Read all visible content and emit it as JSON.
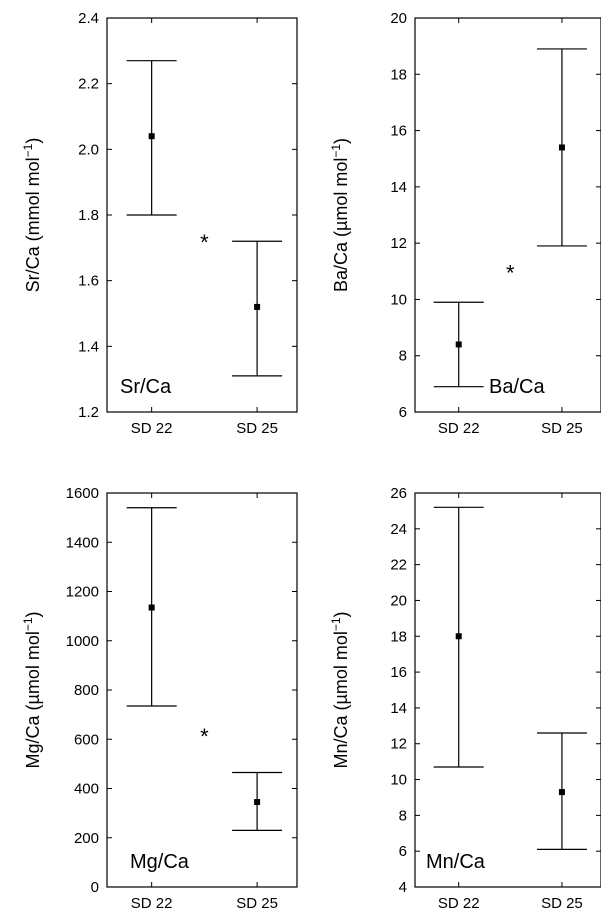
{
  "chart_data": [
    {
      "type": "errorbar",
      "panel_label": "Sr/Ca",
      "ylabel_main": "Sr/Ca (mmol mol",
      "ylabel_sup": "−1",
      "ylabel_close": ")",
      "categories": [
        "SD 22",
        "SD 25"
      ],
      "series": [
        {
          "mean": [
            2.04,
            1.52
          ],
          "lower": [
            1.8,
            1.31
          ],
          "upper": [
            2.27,
            1.72
          ]
        }
      ],
      "ylim": [
        1.2,
        2.4
      ],
      "yticks": [
        1.2,
        1.4,
        1.6,
        1.8,
        2.0,
        2.2,
        2.4
      ],
      "ytick_labels": [
        "1.2",
        "1.4",
        "1.6",
        "1.8",
        "2.0",
        "2.2",
        "2.4"
      ],
      "annotation": "*",
      "annotation_y": 1.73
    },
    {
      "type": "errorbar",
      "panel_label": "Ba/Ca",
      "ylabel_main": "Ba/Ca (µmol mol",
      "ylabel_sup": "−1",
      "ylabel_close": ")",
      "categories": [
        "SD 22",
        "SD 25"
      ],
      "series": [
        {
          "mean": [
            8.4,
            15.4
          ],
          "lower": [
            6.9,
            11.9
          ],
          "upper": [
            9.9,
            18.9
          ]
        }
      ],
      "ylim": [
        6,
        20
      ],
      "yticks": [
        6,
        8,
        10,
        12,
        14,
        16,
        18,
        20
      ],
      "ytick_labels": [
        "6",
        "8",
        "10",
        "12",
        "14",
        "16",
        "18",
        "20"
      ],
      "annotation": "*",
      "annotation_y": 11.1
    },
    {
      "type": "errorbar",
      "panel_label": "Mg/Ca",
      "ylabel_main": "Mg/Ca (µmol mol",
      "ylabel_sup": "−1",
      "ylabel_close": ")",
      "categories": [
        "SD 22",
        "SD 25"
      ],
      "series": [
        {
          "mean": [
            1135,
            345
          ],
          "lower": [
            735,
            230
          ],
          "upper": [
            1540,
            465
          ]
        }
      ],
      "ylim": [
        0,
        1600
      ],
      "yticks": [
        0,
        200,
        400,
        600,
        800,
        1000,
        1200,
        1400,
        1600
      ],
      "ytick_labels": [
        "0",
        "200",
        "400",
        "600",
        "800",
        "1000",
        "1200",
        "1400",
        "1600"
      ],
      "annotation": "*",
      "annotation_y": 630
    },
    {
      "type": "errorbar",
      "panel_label": "Mn/Ca",
      "ylabel_main": "Mn/Ca (µmol mol",
      "ylabel_sup": "−1",
      "ylabel_close": ")",
      "categories": [
        "SD 22",
        "SD 25"
      ],
      "series": [
        {
          "mean": [
            18.0,
            9.3
          ],
          "lower": [
            10.7,
            6.1
          ],
          "upper": [
            25.2,
            12.6
          ]
        }
      ],
      "ylim": [
        4,
        26
      ],
      "yticks": [
        4,
        6,
        8,
        10,
        12,
        14,
        16,
        18,
        20,
        22,
        24,
        26
      ],
      "ytick_labels": [
        "4",
        "6",
        "8",
        "10",
        "12",
        "14",
        "16",
        "18",
        "20",
        "22",
        "24",
        "26"
      ],
      "annotation": null,
      "annotation_y": null
    }
  ]
}
